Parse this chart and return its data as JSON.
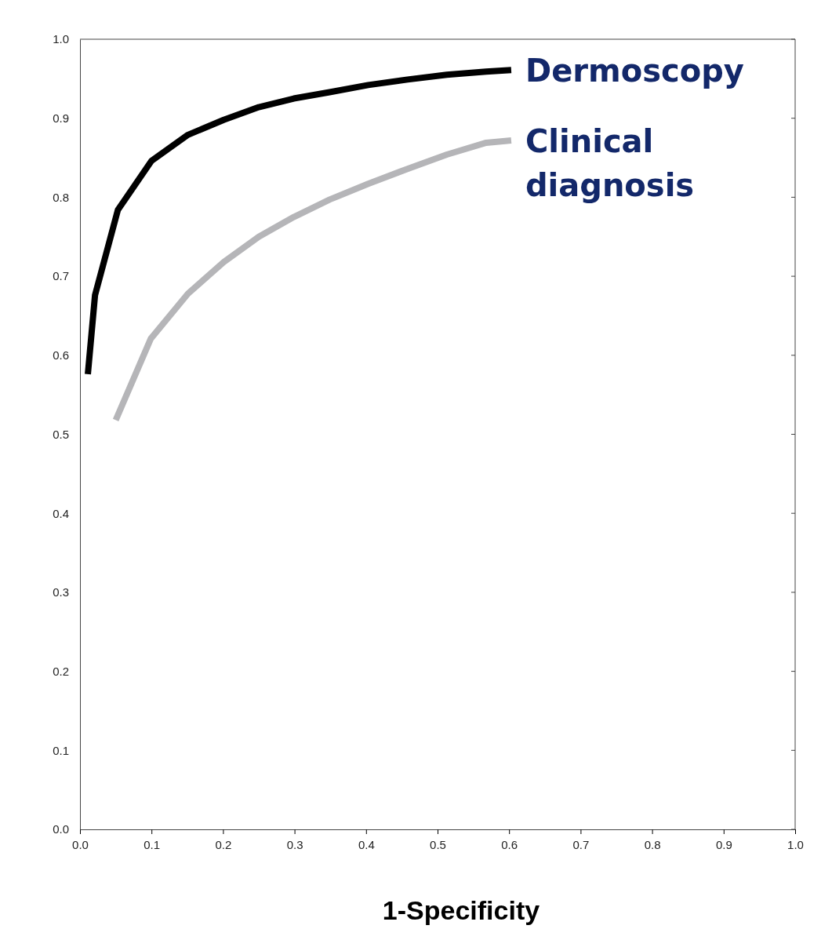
{
  "chart_data": {
    "type": "line",
    "xlabel": "1-Specificity",
    "xlim": [
      0,
      1
    ],
    "ylim": [
      0,
      1
    ],
    "xticks": [
      {
        "value": 0,
        "label": "0.0"
      },
      0.1,
      0.2,
      0.3,
      0.4,
      0.5,
      0.6,
      0.7,
      0.8,
      0.9,
      {
        "value": 1,
        "label": "1.0"
      }
    ],
    "yticks": [
      {
        "value": 0,
        "label": "0.0"
      },
      0.1,
      0.2,
      0.3,
      0.4,
      0.5,
      0.6,
      0.7,
      0.8,
      0.9,
      {
        "value": 1,
        "label": "1.0"
      }
    ],
    "grid": false,
    "legend": false,
    "marker": "none",
    "line_style": "solid",
    "series": [
      {
        "name": "Dermoscopy",
        "color": "#000000",
        "x": [
          0.011,
          0.021,
          0.053,
          0.1,
          0.151,
          0.201,
          0.25,
          0.299,
          0.349,
          0.403,
          0.458,
          0.513,
          0.568,
          0.603
        ],
        "values": [
          0.576,
          0.676,
          0.784,
          0.846,
          0.879,
          0.898,
          0.914,
          0.925,
          0.933,
          0.942,
          0.949,
          0.955,
          0.959,
          0.961
        ]
      },
      {
        "name": "Clinical diagnosis",
        "color": "#b5b5b8",
        "x": [
          0.05,
          0.099,
          0.151,
          0.201,
          0.25,
          0.299,
          0.349,
          0.403,
          0.458,
          0.513,
          0.568,
          0.603
        ],
        "values": [
          0.518,
          0.621,
          0.678,
          0.718,
          0.75,
          0.775,
          0.797,
          0.817,
          0.836,
          0.854,
          0.869,
          0.872
        ]
      }
    ]
  }
}
